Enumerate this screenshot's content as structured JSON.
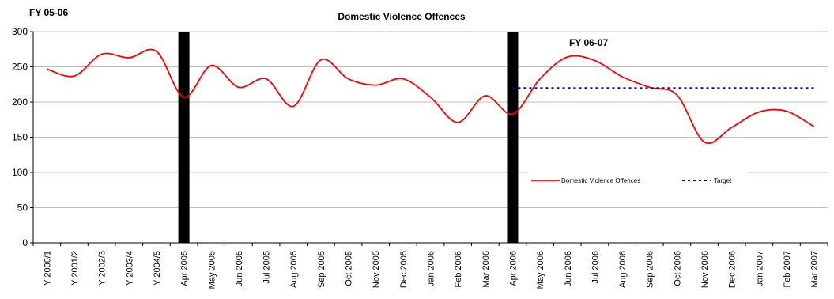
{
  "chart_data": {
    "type": "line",
    "title": "Domestic Violence Offences",
    "annotations": [
      "FY 05-06",
      "FY 06-07"
    ],
    "categories": [
      "FY 2000/1",
      "FY 2001/2",
      "FY 2002/3",
      "FY 2003/4",
      "FY 2004/5",
      "Apr 2005",
      "May 2005",
      "Jun 2005",
      "Jul 2005",
      "Aug 2005",
      "Sep 2005",
      "Oct 2005",
      "Nov 2005",
      "Dec 2005",
      "Jan 2006",
      "Feb 2006",
      "Mar 2006",
      "Apr 2006",
      "May 2006",
      "Jun 2006",
      "Jul 2006",
      "Aug 2006",
      "Sep 2006",
      "Oct 2006",
      "Nov 2006",
      "Dec 2006",
      "Jan 2007",
      "Feb 2007",
      "Mar 2007"
    ],
    "category_labels_shown": [
      "Y 2000/1",
      "Y 2001/2",
      "Y 2002/3",
      "Y 2003/4",
      "Y 2004/5",
      "Apr 2005",
      "May 2005",
      "Jun 2005",
      "Jul 2005",
      "Aug 2005",
      "Sep 2005",
      "Oct 2005",
      "Nov 2005",
      "Dec 2005",
      "Jan 2006",
      "Feb 2006",
      "Mar 2006",
      "Apr 2006",
      "May 2006",
      "Jun 2006",
      "Jul 2006",
      "Aug 2006",
      "Sep 2006",
      "Oct 2006",
      "Nov 2006",
      "Dec 2006",
      "Jan 2007",
      "Feb 2007",
      "Mar 2007"
    ],
    "series": [
      {
        "name": "Domestic Violence Offences",
        "color": "#ff0000",
        "style": "solid",
        "values": [
          247,
          237,
          268,
          263,
          272,
          207,
          252,
          221,
          233,
          194,
          260,
          233,
          224,
          233,
          207,
          171,
          209,
          183,
          233,
          264,
          259,
          236,
          221,
          210,
          143,
          164,
          186,
          187,
          165
        ]
      },
      {
        "name": "Target",
        "color": "#0000cc",
        "style": "dotted",
        "values": [
          null,
          null,
          null,
          null,
          null,
          null,
          null,
          null,
          null,
          null,
          null,
          null,
          null,
          null,
          null,
          null,
          null,
          220,
          220,
          220,
          220,
          220,
          220,
          220,
          220,
          220,
          220,
          220,
          220
        ]
      }
    ],
    "markers": [
      {
        "label": "Apr 2005",
        "color": "#000000"
      },
      {
        "label": "Apr 2006",
        "color": "#000000"
      }
    ],
    "yticks": [
      "0",
      "50",
      "100",
      "150",
      "200",
      "250",
      "300"
    ],
    "ylim": [
      0,
      300
    ],
    "xlabel": "",
    "ylabel": "",
    "grid": true,
    "legend_placement": "inside-right"
  }
}
